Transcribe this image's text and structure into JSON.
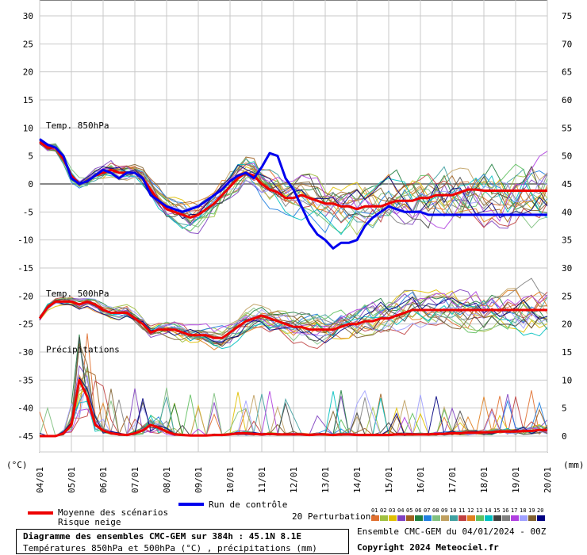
{
  "chart_data": {
    "type": "line",
    "title": "Diagramme des ensembles CMC-GEM sur 384h : 45.1N 8.1E",
    "subtitle": "Températures 850hPa et 500hPa (°C) , précipitations (mm)",
    "left_axis": {
      "label": "(°C)",
      "ticks": [
        30,
        25,
        20,
        15,
        10,
        5,
        0,
        -5,
        -10,
        -15,
        -20,
        -25,
        -30,
        -35,
        -40,
        -45
      ],
      "range": [
        -45,
        30
      ]
    },
    "right_axis": {
      "label": "(mm)",
      "ticks": [
        75,
        70,
        65,
        60,
        55,
        50,
        45,
        40,
        35,
        30,
        25,
        20,
        15,
        10,
        5,
        0
      ],
      "range": [
        0,
        75
      ]
    },
    "x_ticks": [
      "04/01",
      "05/01",
      "06/01",
      "07/01",
      "08/01",
      "09/01",
      "10/01",
      "11/01",
      "12/01",
      "13/01",
      "14/01",
      "15/01",
      "16/01",
      "17/01",
      "18/01",
      "19/01",
      "20/01"
    ],
    "grid": true,
    "annotations": [
      "Temp. 850hPa",
      "Temp. 500hPa",
      "Précipitations"
    ],
    "x_days": [
      0,
      0.25,
      0.5,
      0.75,
      1,
      1.25,
      1.5,
      1.75,
      2,
      2.25,
      2.5,
      2.75,
      3,
      3.25,
      3.5,
      3.75,
      4,
      4.25,
      4.5,
      4.75,
      5,
      5.25,
      5.5,
      5.75,
      6,
      6.25,
      6.5,
      6.75,
      7,
      7.25,
      7.5,
      7.75,
      8,
      8.25,
      8.5,
      8.75,
      9,
      9.25,
      9.5,
      9.75,
      10,
      10.25,
      10.5,
      10.75,
      11,
      11.25,
      11.5,
      11.75,
      12,
      12.25,
      12.5,
      12.75,
      13,
      13.25,
      13.5,
      13.75,
      14,
      14.25,
      14.5,
      14.75,
      15,
      15.25,
      15.5,
      15.75,
      16
    ],
    "series": [
      {
        "name": "Moyenne des scénarios (850hPa)",
        "color": "#ee0000",
        "values": [
          7.5,
          6.5,
          6.5,
          4.5,
          1.5,
          0,
          0.5,
          1.5,
          2,
          2.5,
          2,
          2,
          2,
          1,
          -1,
          -3,
          -4.5,
          -5,
          -5.5,
          -6,
          -5.5,
          -4.5,
          -3.5,
          -2,
          -0.5,
          1,
          2,
          1.5,
          0,
          -1,
          -1.5,
          -2.5,
          -2.5,
          -2,
          -2.5,
          -3,
          -3.5,
          -3.5,
          -4,
          -4,
          -4.5,
          -4,
          -4,
          -4,
          -3.5,
          -3,
          -3,
          -3,
          -2.5,
          -2.5,
          -2,
          -2,
          -2,
          -1.5,
          -1,
          -1,
          -1.2,
          -1.2,
          -1.2,
          -1.2,
          -1.2,
          -1.2,
          -1.2,
          -1.2,
          -1.2
        ]
      },
      {
        "name": "Run de contrôle (850hPa)",
        "color": "#0000ee",
        "values": [
          8,
          7,
          6.5,
          5,
          1,
          0,
          0.5,
          1.5,
          2.5,
          2,
          1,
          2,
          2,
          1,
          -2,
          -3,
          -4,
          -4.5,
          -5,
          -4.5,
          -4,
          -3,
          -2,
          -1,
          0.5,
          1.5,
          2,
          1,
          3,
          5.5,
          5,
          1,
          -1,
          -4,
          -7,
          -9,
          -10,
          -11.5,
          -10.5,
          -10.5,
          -10,
          -7.5,
          -6,
          -5,
          -4,
          -4.5,
          -5,
          -5,
          -5,
          -5.5,
          -5.5,
          -5.5,
          -5.5,
          -5.5,
          -5.5,
          -5.5,
          -5.5,
          -5.5,
          -5.5,
          -5.5,
          -5.5,
          -5.5,
          -5.5,
          -5.5,
          -5.5
        ]
      },
      {
        "name": "Moyenne des scénarios (500hPa)",
        "color": "#ee0000",
        "values": [
          -24,
          -22,
          -21,
          -21,
          -21,
          -21.5,
          -21,
          -21.5,
          -22.5,
          -23,
          -23,
          -23,
          -24,
          -25,
          -26.5,
          -26,
          -26,
          -26,
          -26.5,
          -27,
          -27,
          -27,
          -27.5,
          -27.5,
          -26.5,
          -25.5,
          -24.5,
          -24,
          -23.5,
          -24,
          -24.5,
          -25,
          -25.5,
          -25.5,
          -26,
          -26,
          -26,
          -26,
          -25.5,
          -25,
          -25,
          -24.5,
          -24.5,
          -24,
          -24,
          -23.5,
          -23,
          -22.5,
          -22.5,
          -22.5,
          -22.5,
          -22.5,
          -22.5,
          -22.5,
          -22.5,
          -22.5,
          -22.5,
          -22.5,
          -22.5,
          -22.5,
          -22.5,
          -22.5,
          -22.5,
          -22.5,
          -22.5
        ]
      },
      {
        "name": "Moyenne des scénarios (précipitations)",
        "color": "#ee0000",
        "values": [
          0,
          0,
          0,
          0.5,
          2,
          10,
          7,
          2,
          1,
          0.5,
          0.3,
          0.2,
          0.5,
          1,
          2,
          1.5,
          0.8,
          0.3,
          0.2,
          0.1,
          0.1,
          0.1,
          0.2,
          0.2,
          0.3,
          0.5,
          0.5,
          0.4,
          0.3,
          0.4,
          0.3,
          0.3,
          0.3,
          0.3,
          0.2,
          0.3,
          0.3,
          0.2,
          0.3,
          0.3,
          0.2,
          0.2,
          0.2,
          0.2,
          0.2,
          0.3,
          0.3,
          0.3,
          0.3,
          0.3,
          0.4,
          0.4,
          0.5,
          0.5,
          0.6,
          0.6,
          0.7,
          0.7,
          0.8,
          0.8,
          0.8,
          0.9,
          0.9,
          1.1,
          1.1
        ]
      }
    ]
  },
  "legend": {
    "mean_label": "Moyenne des scénarios",
    "snow_label": "Risque neige",
    "control_label": "Run de contrôle",
    "perturbations_label": "20 Perturbations",
    "mean_color": "#ee0000",
    "control_color": "#0000ee",
    "perturbation_numbers": [
      "01",
      "02",
      "03",
      "04",
      "05",
      "06",
      "07",
      "08",
      "09",
      "10",
      "11",
      "12",
      "13",
      "14",
      "15",
      "16",
      "17",
      "18",
      "19",
      "20"
    ],
    "perturbation_colors": [
      "#e07030",
      "#a0c040",
      "#e0c000",
      "#8040c0",
      "#a06020",
      "#208040",
      "#2080e0",
      "#80c080",
      "#c0a060",
      "#40a0a0",
      "#c04040",
      "#e08020",
      "#60c060",
      "#00c0c0",
      "#404040",
      "#808080",
      "#b040e0",
      "#a0a0ff",
      "#806030",
      "#000080"
    ]
  },
  "footer": {
    "title": "Diagramme des ensembles CMC-GEM sur 384h : 45.1N 8.1E",
    "subtitle": "Températures 850hPa et 500hPa (°C) , précipitations (mm)",
    "ensemble": "Ensemble CMC-GEM du 04/01/2024 - 00Z",
    "copyright": "Copyright 2024 Meteociel.fr"
  }
}
